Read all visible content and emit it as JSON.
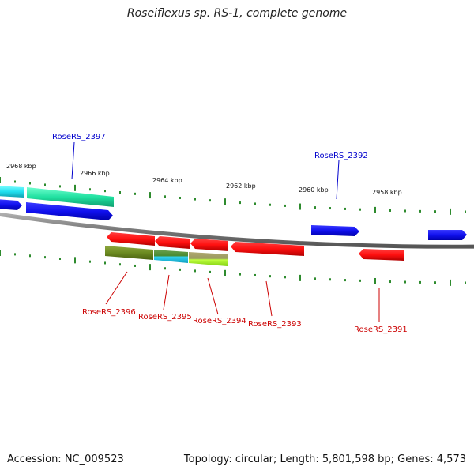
{
  "title": "Roseiflexus sp. RS-1, complete genome",
  "footer": {
    "accession": "Accession: NC_009523",
    "summary": "Topology: circular; Length: 5,801,598 bp; Genes: 4,573"
  },
  "colors": {
    "forward_label": "#0000cc",
    "reverse_label": "#cc0000",
    "backbone": "#888888",
    "tick": "#2e8b2e"
  },
  "scale": {
    "labels": [
      "2968 kbp",
      "2966 kbp",
      "2964 kbp",
      "2962 kbp",
      "2960 kbp",
      "2958 kbp"
    ]
  },
  "genes": {
    "forward": [
      {
        "label": "RoseRS_2397",
        "color": "#1a1aff"
      },
      {
        "label": "RoseRS_2392",
        "color": "#1a1aff"
      }
    ],
    "reverse": [
      {
        "label": "RoseRS_2396",
        "color": "#ff1a1a"
      },
      {
        "label": "RoseRS_2395",
        "color": "#ff1a1a"
      },
      {
        "label": "RoseRS_2394",
        "color": "#ff1a1a"
      },
      {
        "label": "RoseRS_2393",
        "color": "#ff1a1a"
      },
      {
        "label": "RoseRS_2391",
        "color": "#ff1a1a"
      }
    ]
  }
}
